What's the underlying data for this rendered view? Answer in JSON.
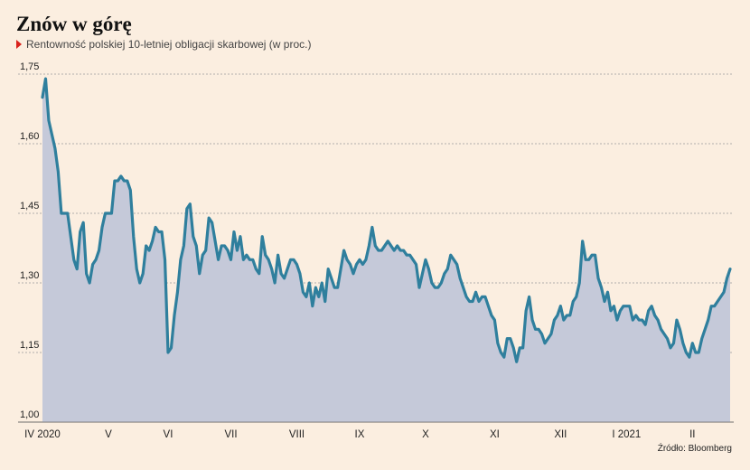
{
  "title": "Znów w górę",
  "subtitle": "Rentowność polskiej 10-letniej obligacji skarbowej (w proc.)",
  "source": "Źródło: Bloomberg",
  "colors": {
    "background": "#fbeee0",
    "line": "#2f7f9d",
    "area": "#c5c9d9",
    "grid": "#999999",
    "marker": "#d9221c"
  },
  "chart_data": {
    "type": "area",
    "title": "Znów w górę",
    "subtitle": "Rentowność polskiej 10-letniej obligacji skarbowej (w proc.)",
    "xlabel": "",
    "ylabel": "",
    "ylim": [
      1.0,
      1.75
    ],
    "yticks": [
      1.0,
      1.15,
      1.3,
      1.45,
      1.6,
      1.75
    ],
    "ytick_labels": [
      "1,00",
      "1,15",
      "1,30",
      "1,45",
      "1,60",
      "1,75"
    ],
    "xticks": [
      {
        "label": "IV 2020",
        "at": 0
      },
      {
        "label": "V",
        "at": 21
      },
      {
        "label": "VI",
        "at": 40
      },
      {
        "label": "VII",
        "at": 60
      },
      {
        "label": "VIII",
        "at": 81
      },
      {
        "label": "IX",
        "at": 101
      },
      {
        "label": "X",
        "at": 122
      },
      {
        "label": "XI",
        "at": 144
      },
      {
        "label": "XII",
        "at": 165
      },
      {
        "label": "I 2021",
        "at": 186
      },
      {
        "label": "II",
        "at": 207
      }
    ],
    "grid": "horizontal dotted",
    "series": [
      {
        "values": [
          1.7,
          1.74,
          1.65,
          1.62,
          1.59,
          1.54,
          1.45,
          1.45,
          1.45,
          1.4,
          1.35,
          1.33,
          1.41,
          1.43,
          1.32,
          1.3,
          1.34,
          1.35,
          1.37,
          1.42,
          1.45,
          1.45,
          1.45,
          1.52,
          1.52,
          1.53,
          1.52,
          1.52,
          1.5,
          1.4,
          1.33,
          1.3,
          1.32,
          1.38,
          1.37,
          1.39,
          1.42,
          1.41,
          1.41,
          1.35,
          1.15,
          1.16,
          1.23,
          1.28,
          1.35,
          1.38,
          1.46,
          1.47,
          1.4,
          1.38,
          1.32,
          1.36,
          1.37,
          1.44,
          1.43,
          1.39,
          1.35,
          1.38,
          1.38,
          1.37,
          1.35,
          1.41,
          1.37,
          1.4,
          1.35,
          1.36,
          1.35,
          1.35,
          1.33,
          1.32,
          1.4,
          1.36,
          1.35,
          1.33,
          1.3,
          1.36,
          1.32,
          1.31,
          1.33,
          1.35,
          1.35,
          1.34,
          1.32,
          1.28,
          1.27,
          1.3,
          1.25,
          1.29,
          1.27,
          1.3,
          1.26,
          1.33,
          1.31,
          1.29,
          1.29,
          1.33,
          1.37,
          1.35,
          1.34,
          1.32,
          1.34,
          1.35,
          1.34,
          1.35,
          1.38,
          1.42,
          1.38,
          1.37,
          1.37,
          1.38,
          1.39,
          1.38,
          1.37,
          1.38,
          1.37,
          1.37,
          1.36,
          1.36,
          1.35,
          1.34,
          1.29,
          1.32,
          1.35,
          1.33,
          1.3,
          1.29,
          1.29,
          1.3,
          1.32,
          1.33,
          1.36,
          1.35,
          1.34,
          1.31,
          1.29,
          1.27,
          1.26,
          1.26,
          1.28,
          1.26,
          1.27,
          1.27,
          1.25,
          1.23,
          1.22,
          1.17,
          1.15,
          1.14,
          1.18,
          1.18,
          1.16,
          1.13,
          1.16,
          1.16,
          1.24,
          1.27,
          1.22,
          1.2,
          1.2,
          1.19,
          1.17,
          1.18,
          1.19,
          1.22,
          1.23,
          1.25,
          1.22,
          1.23,
          1.23,
          1.26,
          1.27,
          1.3,
          1.39,
          1.35,
          1.35,
          1.36,
          1.36,
          1.31,
          1.29,
          1.26,
          1.28,
          1.24,
          1.25,
          1.22,
          1.24,
          1.25,
          1.25,
          1.25,
          1.22,
          1.23,
          1.22,
          1.22,
          1.21,
          1.24,
          1.25,
          1.23,
          1.22,
          1.2,
          1.19,
          1.18,
          1.16,
          1.17,
          1.22,
          1.2,
          1.17,
          1.15,
          1.14,
          1.17,
          1.15,
          1.15,
          1.18,
          1.2,
          1.22,
          1.25,
          1.25,
          1.26,
          1.27,
          1.28,
          1.31,
          1.33
        ]
      }
    ]
  }
}
